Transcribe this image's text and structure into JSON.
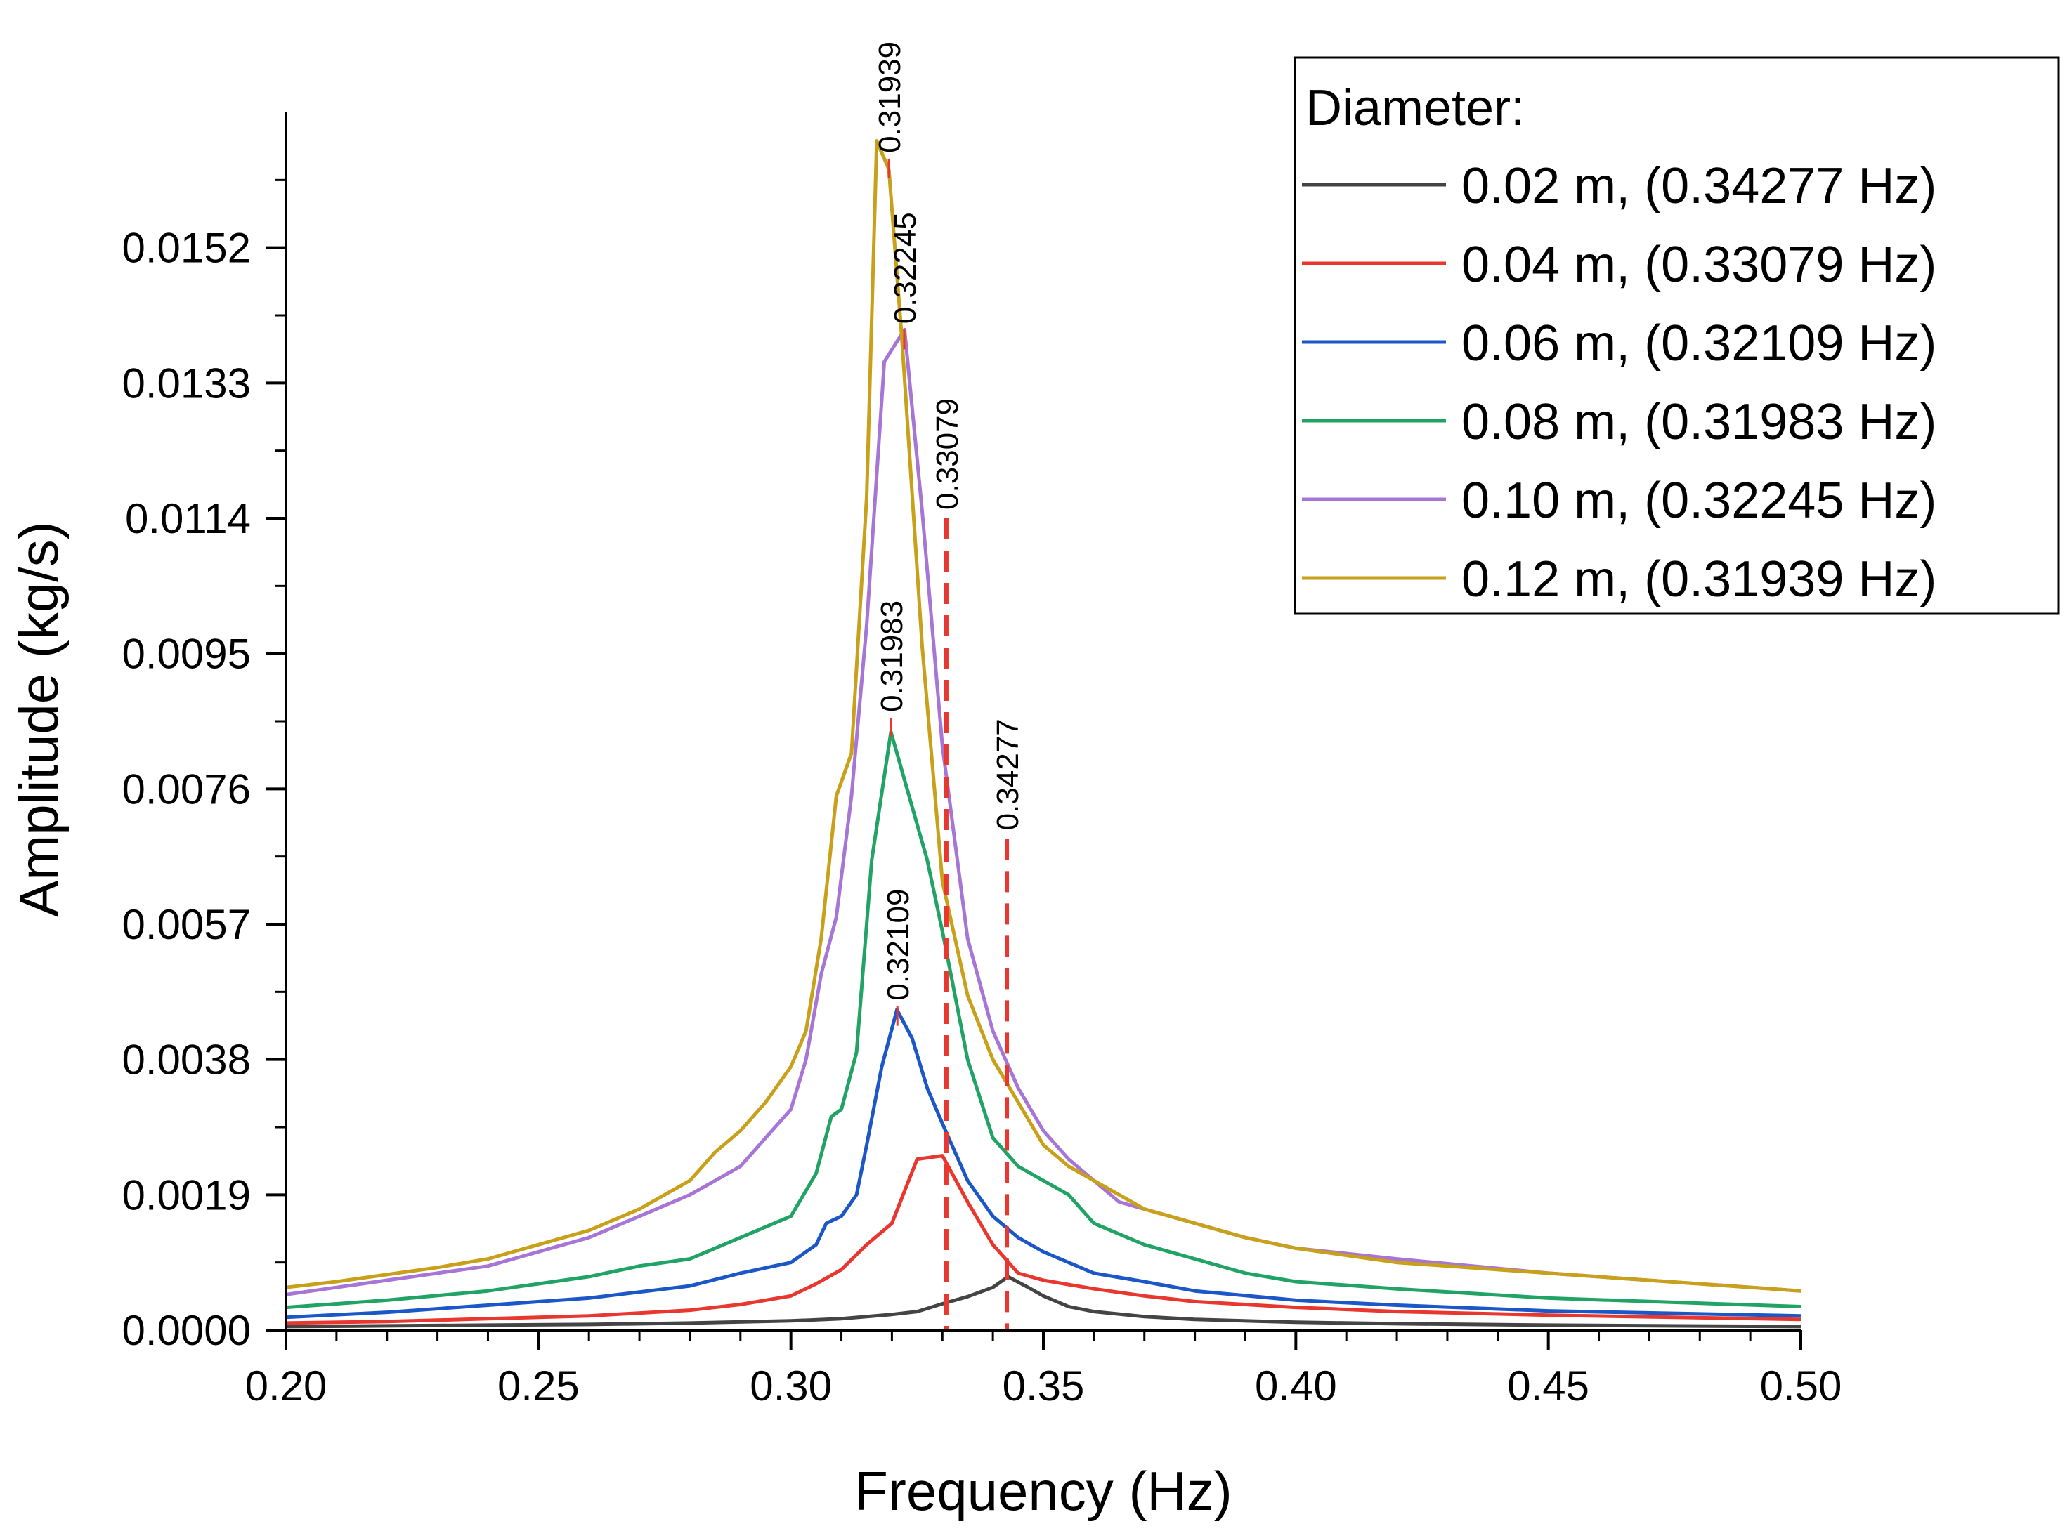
{
  "chart_data": {
    "type": "line",
    "title": "",
    "xlabel": "Frequency (Hz)",
    "ylabel": "Amplitude (kg/s)",
    "xlim": [
      0.2,
      0.5
    ],
    "ylim": [
      0.0,
      0.0171
    ],
    "x_ticks": [
      {
        "value": 0.2,
        "label": "0.20"
      },
      {
        "value": 0.25,
        "label": "0.25"
      },
      {
        "value": 0.3,
        "label": "0.30"
      },
      {
        "value": 0.35,
        "label": "0.35"
      },
      {
        "value": 0.4,
        "label": "0.40"
      },
      {
        "value": 0.45,
        "label": "0.45"
      },
      {
        "value": 0.5,
        "label": "0.50"
      }
    ],
    "y_ticks": [
      {
        "value": 0.0,
        "label": "0.0000"
      },
      {
        "value": 0.0019,
        "label": "0.0019"
      },
      {
        "value": 0.0038,
        "label": "0.0038"
      },
      {
        "value": 0.0057,
        "label": "0.0057"
      },
      {
        "value": 0.0076,
        "label": "0.0076"
      },
      {
        "value": 0.0095,
        "label": "0.0095"
      },
      {
        "value": 0.0114,
        "label": "0.0114"
      },
      {
        "value": 0.0133,
        "label": "0.0133"
      },
      {
        "value": 0.0152,
        "label": "0.0152"
      }
    ],
    "grid": false,
    "legend": {
      "title": "Diameter:",
      "position": "top-right"
    },
    "series": [
      {
        "name": "0.02 m, (0.34277 Hz)",
        "color": "#444444",
        "x": [
          0.2,
          0.22,
          0.24,
          0.26,
          0.28,
          0.3,
          0.31,
          0.32,
          0.325,
          0.33,
          0.335,
          0.34,
          0.343,
          0.347,
          0.35,
          0.355,
          0.36,
          0.37,
          0.38,
          0.4,
          0.42,
          0.45,
          0.5
        ],
        "y": [
          5e-05,
          6e-05,
          7e-05,
          8e-05,
          0.0001,
          0.00013,
          0.00016,
          0.00022,
          0.00026,
          0.00037,
          0.00047,
          0.0006,
          0.00075,
          0.0006,
          0.00048,
          0.00033,
          0.00026,
          0.00019,
          0.00015,
          0.00011,
          9e-05,
          7e-05,
          5e-05
        ]
      },
      {
        "name": "0.04 m, (0.33079 Hz)",
        "color": "#e8372f",
        "x": [
          0.2,
          0.22,
          0.24,
          0.26,
          0.28,
          0.29,
          0.3,
          0.305,
          0.31,
          0.315,
          0.32,
          0.325,
          0.33,
          0.335,
          0.34,
          0.345,
          0.35,
          0.36,
          0.37,
          0.38,
          0.4,
          0.42,
          0.45,
          0.5
        ],
        "y": [
          0.0001,
          0.00012,
          0.00016,
          0.0002,
          0.00028,
          0.00036,
          0.00048,
          0.00065,
          0.00085,
          0.0012,
          0.0015,
          0.0024,
          0.00245,
          0.0018,
          0.0012,
          0.0008,
          0.0007,
          0.00058,
          0.00048,
          0.0004,
          0.00032,
          0.00026,
          0.00021,
          0.00015
        ]
      },
      {
        "name": "0.06 m, (0.32109 Hz)",
        "color": "#1c57c8",
        "x": [
          0.2,
          0.22,
          0.24,
          0.26,
          0.28,
          0.29,
          0.3,
          0.305,
          0.307,
          0.31,
          0.313,
          0.315,
          0.318,
          0.321,
          0.324,
          0.327,
          0.33,
          0.335,
          0.34,
          0.345,
          0.35,
          0.36,
          0.37,
          0.38,
          0.4,
          0.42,
          0.45,
          0.5
        ],
        "y": [
          0.00018,
          0.00025,
          0.00035,
          0.00045,
          0.00062,
          0.0008,
          0.00095,
          0.0012,
          0.0015,
          0.0016,
          0.0019,
          0.0026,
          0.0037,
          0.0045,
          0.0041,
          0.0034,
          0.0029,
          0.0021,
          0.0016,
          0.0013,
          0.0011,
          0.0008,
          0.00068,
          0.00055,
          0.00042,
          0.00035,
          0.00027,
          0.0002
        ]
      },
      {
        "name": "0.08 m, (0.31983 Hz)",
        "color": "#21a365",
        "x": [
          0.2,
          0.22,
          0.24,
          0.26,
          0.27,
          0.28,
          0.29,
          0.3,
          0.305,
          0.308,
          0.31,
          0.313,
          0.316,
          0.3198,
          0.323,
          0.327,
          0.33,
          0.335,
          0.34,
          0.345,
          0.35,
          0.355,
          0.36,
          0.37,
          0.38,
          0.39,
          0.4,
          0.42,
          0.45,
          0.5
        ],
        "y": [
          0.00032,
          0.00042,
          0.00055,
          0.00075,
          0.0009,
          0.001,
          0.0013,
          0.0016,
          0.0022,
          0.003,
          0.0031,
          0.0039,
          0.0066,
          0.0084,
          0.0076,
          0.0066,
          0.0056,
          0.0038,
          0.0027,
          0.0023,
          0.0021,
          0.0019,
          0.0015,
          0.0012,
          0.001,
          0.0008,
          0.00068,
          0.00058,
          0.00045,
          0.00033
        ]
      },
      {
        "name": "0.10 m, (0.32245 Hz)",
        "color": "#a675d6",
        "x": [
          0.2,
          0.21,
          0.22,
          0.23,
          0.24,
          0.25,
          0.26,
          0.27,
          0.28,
          0.285,
          0.29,
          0.295,
          0.3,
          0.303,
          0.306,
          0.309,
          0.312,
          0.315,
          0.3185,
          0.3225,
          0.326,
          0.33,
          0.335,
          0.34,
          0.345,
          0.35,
          0.355,
          0.36,
          0.365,
          0.37,
          0.38,
          0.39,
          0.4,
          0.42,
          0.45,
          0.5
        ],
        "y": [
          0.0005,
          0.0006,
          0.0007,
          0.0008,
          0.0009,
          0.0011,
          0.0013,
          0.0016,
          0.0019,
          0.0021,
          0.0023,
          0.0027,
          0.0031,
          0.0038,
          0.005,
          0.0058,
          0.0075,
          0.0099,
          0.0136,
          0.01405,
          0.0115,
          0.0082,
          0.0055,
          0.0042,
          0.0034,
          0.0028,
          0.0024,
          0.0021,
          0.0018,
          0.0017,
          0.0015,
          0.0013,
          0.00115,
          0.001,
          0.0008,
          0.00055
        ]
      },
      {
        "name": "0.12 m, (0.31939 Hz)",
        "color": "#c8a019",
        "x": [
          0.2,
          0.21,
          0.22,
          0.23,
          0.24,
          0.25,
          0.26,
          0.27,
          0.28,
          0.285,
          0.29,
          0.295,
          0.3,
          0.303,
          0.306,
          0.309,
          0.312,
          0.315,
          0.317,
          0.3194,
          0.322,
          0.326,
          0.33,
          0.335,
          0.34,
          0.345,
          0.35,
          0.355,
          0.36,
          0.365,
          0.37,
          0.38,
          0.39,
          0.4,
          0.42,
          0.45,
          0.5
        ],
        "y": [
          0.0006,
          0.00068,
          0.00078,
          0.00088,
          0.001,
          0.0012,
          0.0014,
          0.0017,
          0.0021,
          0.0025,
          0.0028,
          0.0032,
          0.0037,
          0.0042,
          0.0055,
          0.0075,
          0.0081,
          0.0117,
          0.0167,
          0.0163,
          0.0139,
          0.0096,
          0.0063,
          0.0047,
          0.0038,
          0.0032,
          0.0026,
          0.0023,
          0.0021,
          0.0019,
          0.0017,
          0.0015,
          0.0013,
          0.00115,
          0.00095,
          0.0008,
          0.00055
        ]
      }
    ],
    "peak_annotations": [
      {
        "x": 0.31939,
        "y": 0.01645,
        "label": "0.31939",
        "color": "#e8372f"
      },
      {
        "x": 0.32245,
        "y": 0.01405,
        "label": "0.32245",
        "color": "#e8372f"
      },
      {
        "x": 0.31983,
        "y": 0.0086,
        "label": "0.31983",
        "color": "#e8372f"
      },
      {
        "x": 0.32109,
        "y": 0.00455,
        "label": "0.32109",
        "color": "#e8372f"
      }
    ],
    "vertical_markers": [
      {
        "x": 0.33079,
        "top": 0.0114,
        "label": "0.33079",
        "color": "#e8372f"
      },
      {
        "x": 0.34277,
        "top": 0.0069,
        "label": "0.34277",
        "color": "#e8372f"
      }
    ]
  }
}
